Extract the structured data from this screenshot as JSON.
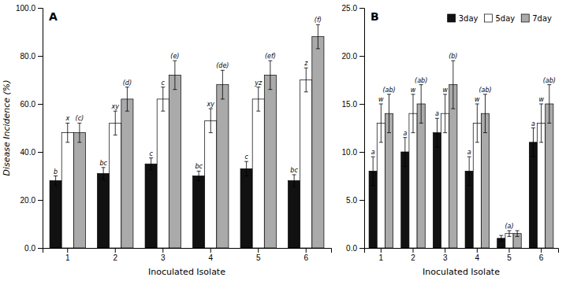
{
  "chart_data": [
    {
      "type": "bar",
      "categories": [
        "1",
        "2",
        "3",
        "4",
        "5",
        "6"
      ],
      "series": [
        {
          "name": "3day",
          "color": "#111111",
          "values": [
            28.0,
            31.0,
            35.0,
            30.0,
            33.0,
            28.0
          ],
          "errors": [
            2.0,
            2.5,
            2.5,
            2.0,
            3.0,
            2.5
          ],
          "labels": [
            "b",
            "bc",
            "c",
            "bc",
            "c",
            "bc"
          ]
        },
        {
          "name": "5day",
          "color": "#ffffff",
          "values": [
            48.0,
            52.0,
            62.0,
            53.0,
            62.0,
            70.0
          ],
          "errors": [
            4.0,
            5.0,
            5.0,
            5.0,
            5.0,
            5.0
          ],
          "labels": [
            "x",
            "xy",
            "c",
            "xy",
            "yz",
            "z"
          ]
        },
        {
          "name": "7day",
          "color": "#aaaaaa",
          "values": [
            48.0,
            62.0,
            72.0,
            68.0,
            72.0,
            88.0
          ],
          "errors": [
            4.0,
            5.0,
            6.0,
            6.0,
            6.0,
            5.0
          ],
          "labels": [
            "(c)",
            "(d)",
            "(e)",
            "(de)",
            "(ef)",
            "(f)"
          ]
        }
      ],
      "ylim": [
        0,
        100
      ],
      "yticks": [
        {
          "value": 0,
          "label": "0.0"
        },
        {
          "value": 20,
          "label": "20.0"
        },
        {
          "value": 40,
          "label": "40.0"
        },
        {
          "value": 60,
          "label": "60.0"
        },
        {
          "value": 80,
          "label": "80.0"
        },
        {
          "value": 100,
          "label": "100.0"
        }
      ],
      "ylabel": "Disease Incidence (%)",
      "xlabel": "Inoculated Isolate",
      "annotations": [
        "A"
      ],
      "grid": false
    },
    {
      "type": "bar",
      "categories": [
        "1",
        "2",
        "3",
        "4",
        "5",
        "6"
      ],
      "series": [
        {
          "name": "3day",
          "color": "#111111",
          "values": [
            8.0,
            10.0,
            12.0,
            8.0,
            1.0,
            11.0
          ],
          "errors": [
            1.5,
            1.5,
            1.5,
            1.5,
            0.3,
            1.5
          ],
          "labels": [
            "a",
            "a",
            "a",
            "a",
            null,
            "a"
          ]
        },
        {
          "name": "5day",
          "color": "#ffffff",
          "values": [
            13.0,
            14.0,
            14.0,
            13.0,
            1.5,
            13.0
          ],
          "errors": [
            2.0,
            2.0,
            2.0,
            2.0,
            0.3,
            2.0
          ],
          "labels": [
            "w",
            "w",
            "w",
            "w",
            "(a)",
            "w"
          ]
        },
        {
          "name": "7day",
          "color": "#aaaaaa",
          "values": [
            14.0,
            15.0,
            17.0,
            14.0,
            1.5,
            15.0
          ],
          "errors": [
            2.0,
            2.0,
            2.5,
            2.0,
            0.3,
            2.0
          ],
          "labels": [
            "(ab)",
            "(ab)",
            "(b)",
            "(ab)",
            null,
            "(ab)"
          ]
        }
      ],
      "ylim": [
        0,
        25
      ],
      "yticks": [
        {
          "value": 0,
          "label": "0.0"
        },
        {
          "value": 5,
          "label": "5.0"
        },
        {
          "value": 10,
          "label": "10.0"
        },
        {
          "value": 15,
          "label": "15.0"
        },
        {
          "value": 20,
          "label": "20.0"
        },
        {
          "value": 25,
          "label": "25.0"
        }
      ],
      "xlabel": "Inoculated Isolate",
      "annotations": [
        "B"
      ],
      "legend": "upper right",
      "grid": false
    }
  ]
}
